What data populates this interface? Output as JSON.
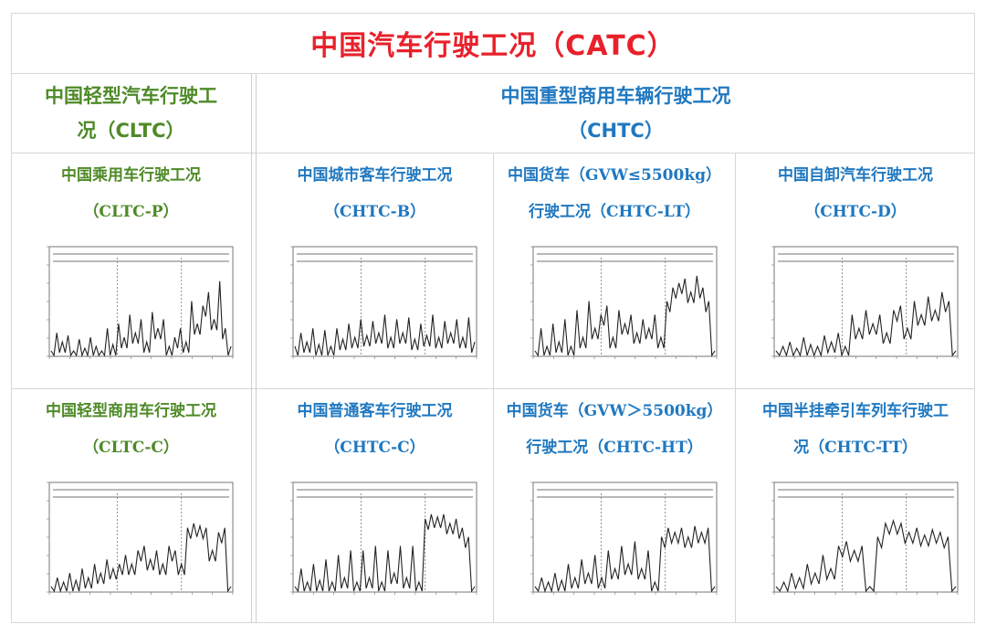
{
  "title": "中国汽车行驶工况（CATC）",
  "left_header": {
    "line1": "中国轻型汽车行驶工",
    "line2": "况（CLTC）"
  },
  "right_header": {
    "line1": "中国重型商用车辆行驶工况",
    "line2": "（CHTC）"
  },
  "colors": {
    "title": "#e8212b",
    "light_text": "#4e8a27",
    "heavy_text": "#1f78c0",
    "grid": "#d6d6d6"
  },
  "cells": [
    {
      "id": "cltc-p",
      "line1": "中国乘用车行驶工况",
      "line2": "（CLTC-P）",
      "color": "light"
    },
    {
      "id": "chtc-b",
      "line1": "中国城市客车行驶工况",
      "line2": "（CHTC-B）",
      "color": "heavy"
    },
    {
      "id": "chtc-lt",
      "line1": "中国货车（GVW≤5500kg）",
      "line2": "行驶工况（CHTC-LT）",
      "color": "heavy"
    },
    {
      "id": "chtc-d",
      "line1": "中国自卸汽车行驶工况",
      "line2": "（CHTC-D）",
      "color": "heavy"
    },
    {
      "id": "cltc-c",
      "line1": "中国轻型商用车行驶工况",
      "line2": "（CLTC-C）",
      "color": "light"
    },
    {
      "id": "chtc-c",
      "line1": "中国普通客车行驶工况",
      "line2": "（CHTC-C）",
      "color": "heavy"
    },
    {
      "id": "chtc-ht",
      "line1": "中国货车（GVW＞5500kg）",
      "line2": "行驶工况（CHTC-HT）",
      "color": "heavy"
    },
    {
      "id": "chtc-tt",
      "line1": "中国半挂牵引车列车行驶工",
      "line2": "况（CHTC-TT）",
      "color": "heavy"
    }
  ],
  "traces": {
    "cltc-p": [
      0.05,
      0.25,
      0.15,
      0.22,
      0.05,
      0.18,
      0.08,
      0.2,
      0.1,
      0.05,
      0.3,
      0.12,
      0.35,
      0.2,
      0.45,
      0.25,
      0.4,
      0.15,
      0.48,
      0.3,
      0.4,
      0.1,
      0.2,
      0.3,
      0.15,
      0.6,
      0.35,
      0.55,
      0.7,
      0.4,
      0.82,
      0.3,
      0.1
    ],
    "chtc-b": [
      0.1,
      0.25,
      0.15,
      0.3,
      0.12,
      0.28,
      0.1,
      0.3,
      0.18,
      0.35,
      0.2,
      0.4,
      0.22,
      0.38,
      0.25,
      0.45,
      0.2,
      0.4,
      0.25,
      0.42,
      0.18,
      0.35,
      0.22,
      0.45,
      0.2,
      0.38,
      0.25,
      0.4,
      0.2,
      0.42,
      0.15
    ],
    "chtc-lt": [
      0.05,
      0.3,
      0.1,
      0.35,
      0.15,
      0.4,
      0.1,
      0.5,
      0.2,
      0.6,
      0.3,
      0.45,
      0.55,
      0.2,
      0.5,
      0.35,
      0.45,
      0.25,
      0.4,
      0.3,
      0.45,
      0.2,
      0.6,
      0.75,
      0.8,
      0.85,
      0.7,
      0.88,
      0.75,
      0.6,
      0.05
    ],
    "chtc-d": [
      0.05,
      0.1,
      0.15,
      0.08,
      0.2,
      0.12,
      0.1,
      0.22,
      0.15,
      0.25,
      0.1,
      0.45,
      0.3,
      0.5,
      0.35,
      0.45,
      0.25,
      0.5,
      0.55,
      0.3,
      0.6,
      0.45,
      0.65,
      0.5,
      0.7,
      0.6,
      0.05
    ],
    "cltc-c": [
      0.05,
      0.15,
      0.1,
      0.2,
      0.12,
      0.25,
      0.15,
      0.3,
      0.2,
      0.35,
      0.25,
      0.3,
      0.4,
      0.3,
      0.45,
      0.5,
      0.35,
      0.45,
      0.3,
      0.5,
      0.45,
      0.3,
      0.7,
      0.75,
      0.72,
      0.7,
      0.45,
      0.65,
      0.7,
      0.05
    ],
    "chtc-c": [
      0.05,
      0.25,
      0.1,
      0.3,
      0.12,
      0.35,
      0.1,
      0.4,
      0.15,
      0.45,
      0.1,
      0.45,
      0.15,
      0.5,
      0.1,
      0.45,
      0.2,
      0.5,
      0.15,
      0.5,
      0.1,
      0.8,
      0.85,
      0.82,
      0.85,
      0.75,
      0.8,
      0.7,
      0.6,
      0.05
    ],
    "chtc-ht": [
      0.05,
      0.15,
      0.1,
      0.2,
      0.12,
      0.3,
      0.15,
      0.35,
      0.2,
      0.4,
      0.15,
      0.45,
      0.25,
      0.5,
      0.3,
      0.55,
      0.25,
      0.45,
      0.1,
      0.6,
      0.7,
      0.65,
      0.7,
      0.6,
      0.72,
      0.65,
      0.7,
      0.05
    ],
    "chtc-tt": [
      0.05,
      0.1,
      0.2,
      0.15,
      0.3,
      0.2,
      0.4,
      0.25,
      0.5,
      0.55,
      0.45,
      0.5,
      0.05,
      0.6,
      0.75,
      0.78,
      0.75,
      0.65,
      0.7,
      0.62,
      0.68,
      0.65,
      0.6,
      0.05
    ]
  }
}
